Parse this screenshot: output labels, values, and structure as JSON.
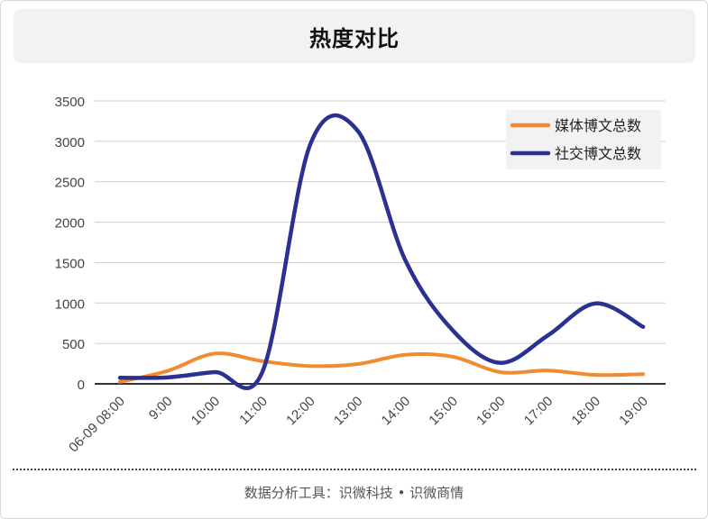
{
  "header": {
    "title": "热度对比"
  },
  "footer": {
    "text": "数据分析工具：识微科技 • 识微商情"
  },
  "colors": {
    "media": "#f28a30",
    "social": "#2a3190",
    "grid": "#cfcfcf",
    "axis": "#333333"
  },
  "chart_data": {
    "type": "line",
    "title": "热度对比",
    "categories": [
      "06-09 08:00",
      "9:00",
      "10:00",
      "11:00",
      "12:00",
      "13:00",
      "14:00",
      "15:00",
      "16:00",
      "17:00",
      "18:00",
      "19:00"
    ],
    "series": [
      {
        "name": "媒体博文总数",
        "values": [
          25,
          160,
          375,
          280,
          220,
          245,
          360,
          335,
          145,
          165,
          110,
          120
        ]
      },
      {
        "name": "社交博文总数",
        "values": [
          75,
          80,
          145,
          155,
          2960,
          3130,
          1530,
          660,
          260,
          600,
          995,
          705
        ]
      }
    ],
    "ylim": [
      0,
      3500
    ],
    "yticks": [
      0,
      500,
      1000,
      1500,
      2000,
      2500,
      3000,
      3500
    ],
    "grid": true,
    "legend": "top-right"
  }
}
